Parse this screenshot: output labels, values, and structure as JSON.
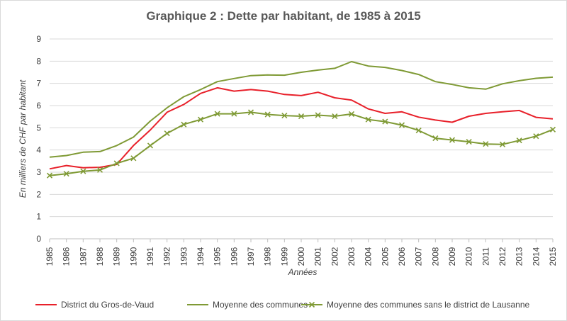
{
  "chart_data": {
    "type": "line",
    "title": "Graphique 2 : Dette par habitant, de 1985 à 2015",
    "xlabel": "Années",
    "ylabel": "En milliers de CHF par habitant",
    "ylim": [
      0,
      9
    ],
    "yticks": [
      "0",
      "1",
      "2",
      "3",
      "4",
      "5",
      "6",
      "7",
      "8",
      "9"
    ],
    "grid": true,
    "legend": "bottom",
    "x": [
      "1985",
      "1986",
      "1987",
      "1988",
      "1989",
      "1990",
      "1991",
      "1992",
      "1993",
      "1994",
      "1995",
      "1996",
      "1997",
      "1998",
      "1999",
      "2000",
      "2001",
      "2002",
      "2003",
      "2004",
      "2005",
      "2006",
      "2007",
      "2008",
      "2009",
      "2010",
      "2011",
      "2012",
      "2013",
      "2014",
      "2015"
    ],
    "series": [
      {
        "name": "District du Gros-de-Vaud",
        "color": "#e8202a",
        "marker": "none",
        "values": [
          3.15,
          3.3,
          3.2,
          3.22,
          3.35,
          4.2,
          4.9,
          5.7,
          6.05,
          6.55,
          6.8,
          6.65,
          6.72,
          6.65,
          6.5,
          6.45,
          6.6,
          6.35,
          6.25,
          5.85,
          5.65,
          5.72,
          5.48,
          5.35,
          5.25,
          5.52,
          5.65,
          5.72,
          5.78,
          5.47,
          5.4
        ]
      },
      {
        "name": "Moyenne des communes",
        "color": "#7f9a35",
        "marker": "none",
        "values": [
          3.68,
          3.75,
          3.9,
          3.93,
          4.2,
          4.58,
          5.3,
          5.9,
          6.4,
          6.72,
          7.08,
          7.22,
          7.35,
          7.38,
          7.37,
          7.5,
          7.6,
          7.68,
          7.98,
          7.78,
          7.72,
          7.58,
          7.4,
          7.08,
          6.95,
          6.8,
          6.74,
          6.98,
          7.12,
          7.23,
          7.28
        ]
      },
      {
        "name": "Moyenne des communes sans le district de Lausanne",
        "color": "#7f9a35",
        "marker": "x",
        "values": [
          2.85,
          2.93,
          3.04,
          3.1,
          3.4,
          3.63,
          4.2,
          4.75,
          5.15,
          5.37,
          5.63,
          5.63,
          5.7,
          5.6,
          5.55,
          5.52,
          5.57,
          5.52,
          5.62,
          5.37,
          5.28,
          5.12,
          4.88,
          4.53,
          4.45,
          4.37,
          4.27,
          4.25,
          4.43,
          4.62,
          4.92
        ]
      }
    ]
  }
}
